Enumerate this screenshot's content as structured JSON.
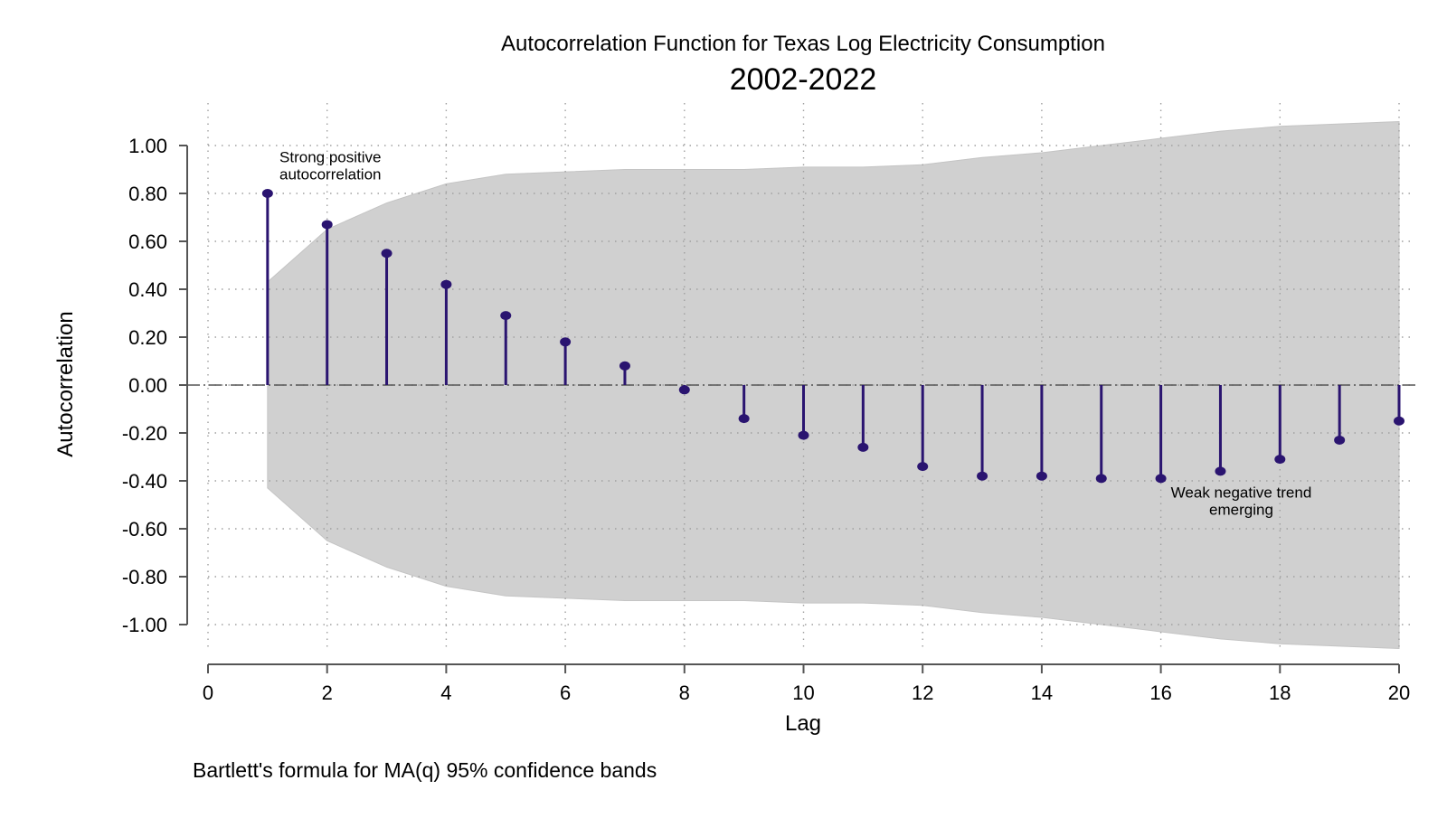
{
  "chart_data": {
    "type": "stem",
    "title": "Autocorrelation Function for Texas Log Electricity Consumption",
    "subtitle": "2002-2022",
    "xlabel": "Lag",
    "ylabel": "Autocorrelation",
    "note": "Bartlett's formula for MA(q) 95% confidence bands",
    "xlim": [
      0,
      20
    ],
    "ylim": [
      -1.0,
      1.0
    ],
    "x_ticks": [
      "0",
      "2",
      "4",
      "6",
      "8",
      "10",
      "12",
      "14",
      "16",
      "18",
      "20"
    ],
    "y_ticks": [
      "1.00",
      "0.80",
      "0.60",
      "0.40",
      "0.20",
      "0.00",
      "-0.20",
      "-0.40",
      "-0.60",
      "-0.80",
      "-1.00"
    ],
    "grid": true,
    "series": [
      {
        "lags": [
          1,
          2,
          3,
          4,
          5,
          6,
          7,
          8,
          9,
          10,
          11,
          12,
          13,
          14,
          15,
          16,
          17,
          18,
          19,
          20
        ],
        "values": [
          0.8,
          0.67,
          0.55,
          0.42,
          0.29,
          0.18,
          0.08,
          -0.02,
          -0.14,
          -0.21,
          -0.26,
          -0.34,
          -0.38,
          -0.38,
          -0.39,
          -0.39,
          -0.36,
          -0.31,
          -0.23,
          -0.15
        ]
      }
    ],
    "confidence_band": {
      "lags": [
        1,
        2,
        3,
        4,
        5,
        6,
        7,
        8,
        9,
        10,
        11,
        12,
        13,
        14,
        15,
        16,
        17,
        18,
        19,
        20
      ],
      "upper": [
        0.43,
        0.65,
        0.76,
        0.84,
        0.88,
        0.89,
        0.9,
        0.9,
        0.9,
        0.91,
        0.91,
        0.92,
        0.95,
        0.97,
        1.0,
        1.03,
        1.06,
        1.08,
        1.09,
        1.1
      ],
      "lower": [
        -0.43,
        -0.65,
        -0.76,
        -0.84,
        -0.88,
        -0.89,
        -0.9,
        -0.9,
        -0.9,
        -0.91,
        -0.91,
        -0.92,
        -0.95,
        -0.97,
        -1.0,
        -1.03,
        -1.06,
        -1.08,
        -1.09,
        -1.1
      ]
    },
    "annotations": [
      {
        "lines": [
          "Strong positive",
          "autocorrelation"
        ],
        "anchor_lag": 1.2,
        "anchor_value": 0.93
      },
      {
        "lines": [
          "Weak negative trend",
          "emerging"
        ],
        "anchor_lag": 17.35,
        "anchor_value": -0.47
      }
    ],
    "colors": {
      "stem": "#2a1470",
      "band": "#d0d0d0",
      "grid": "#a0a0a0",
      "axis": "#555555",
      "zero_line": "#555555"
    }
  }
}
